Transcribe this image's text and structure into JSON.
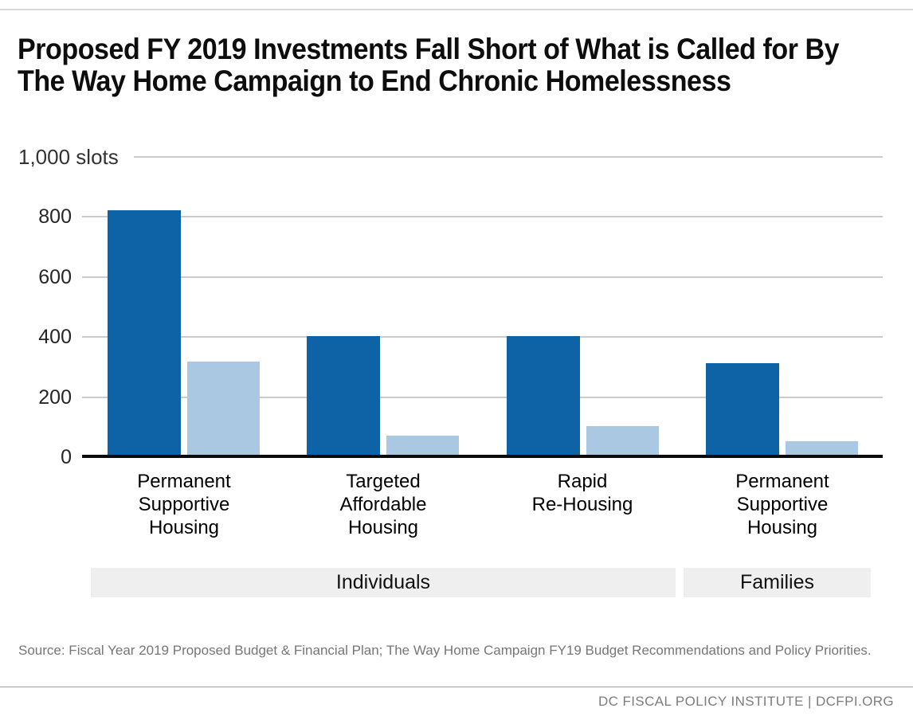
{
  "header": {
    "title_line1": "Proposed FY 2019 Investments Fall Short of What is Called for By",
    "title_line2": "The Way Home Campaign to End Chronic Homelessness"
  },
  "chart_data": {
    "type": "bar",
    "title": "Proposed FY 2019 Investments Fall Short of What is Called for By The Way Home Campaign to End Chronic Homelessness",
    "y_axis": {
      "top_label": "1,000 slots",
      "max": 1000,
      "ticks": [
        0,
        200,
        400,
        600,
        800
      ],
      "grid": true
    },
    "categories": [
      "Permanent Supportive Housing",
      "Targeted Affordable Housing",
      "Rapid Re-Housing",
      "Permanent Supportive Housing"
    ],
    "category_lines": [
      [
        "Permanent",
        "Supportive",
        "Housing"
      ],
      [
        "Targeted",
        "Affordable",
        "Housing"
      ],
      [
        "Rapid",
        "Re-Housing"
      ],
      [
        "Permanent",
        "Supportive",
        "Housing"
      ]
    ],
    "series": [
      {
        "name": "dark-blue-bars",
        "color": "#0e63a6",
        "values": [
          820,
          400,
          400,
          310
        ]
      },
      {
        "name": "light-blue-bars",
        "color": "#abc8e2",
        "values": [
          315,
          70,
          100,
          50
        ]
      }
    ],
    "group_bands": [
      {
        "label": "Individuals",
        "categories": [
          0,
          1,
          2
        ]
      },
      {
        "label": "Families",
        "categories": [
          3
        ]
      }
    ],
    "legend_position": "none",
    "ylim": [
      0,
      1000
    ]
  },
  "colors": {
    "dark_bar": "#0e63a6",
    "light_bar": "#abc8e2",
    "gridline": "#cbcbcb",
    "band_background": "#efefef",
    "axis": "#0a0a0a"
  },
  "footer": {
    "source": "Source: Fiscal Year 2019 Proposed Budget & Financial Plan; The Way Home Campaign FY19 Budget Recommendations and Policy Priorities.",
    "branding": "DC FISCAL POLICY INSTITUTE | DCFPI.ORG"
  }
}
